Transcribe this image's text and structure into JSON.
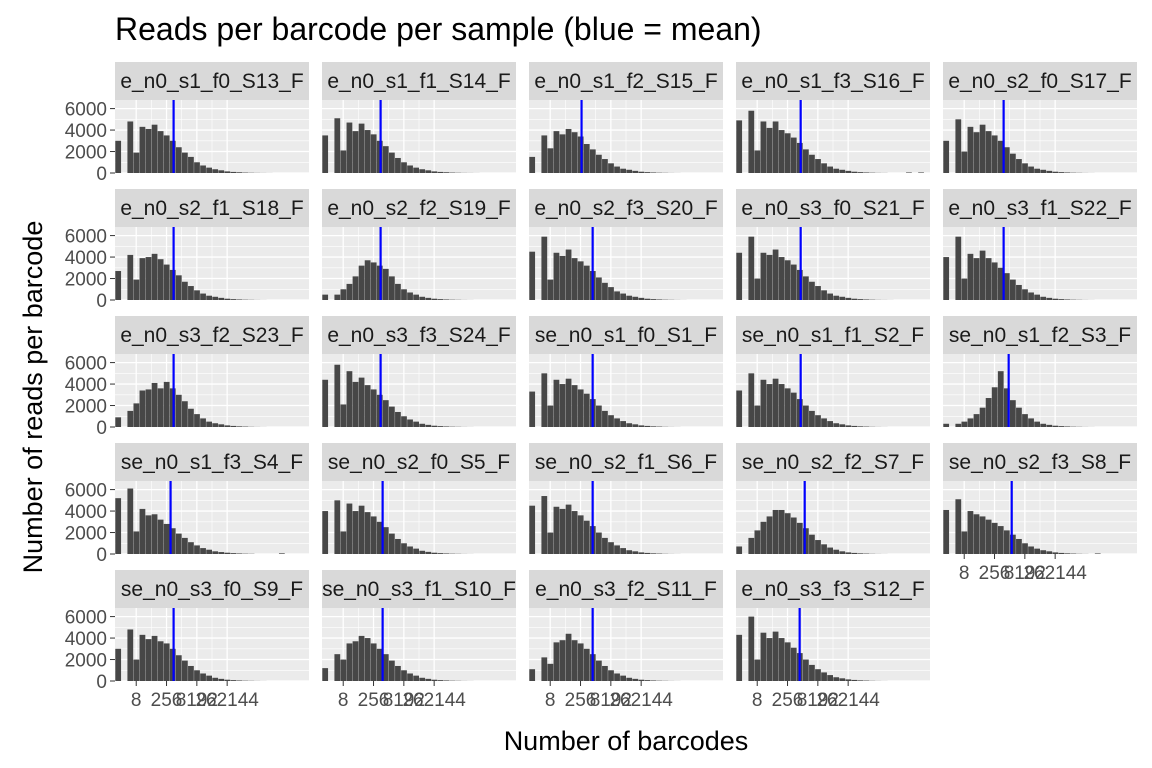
{
  "chart_data": {
    "type": "bar",
    "title": "Reads per barcode per sample (blue = mean)",
    "xlabel": "Number of barcodes",
    "ylabel": "Number of reads per barcode",
    "x_scale": "log2",
    "x_tick_labels": [
      "8",
      "256",
      "8192",
      "262144"
    ],
    "y_tick_labels": [
      "0",
      "2000",
      "4000",
      "6000"
    ],
    "ylim": [
      0,
      6800
    ],
    "grid": true,
    "colors": {
      "bar": "#474747",
      "mean": "#0000ff",
      "panel": "#ebebeb",
      "strip": "#d9d9d9",
      "grid": "#ffffff"
    },
    "panels": [
      {
        "label": "e_n0_s1_f0_S13_F",
        "mean": 5.8,
        "values": [
          3000,
          0,
          4800,
          1900,
          4300,
          4100,
          4500,
          3900,
          3500,
          3000,
          2400,
          1900,
          1500,
          1000,
          700,
          500,
          350,
          250,
          150,
          100,
          70,
          40,
          25,
          15,
          10,
          5,
          0,
          0,
          0,
          0,
          0,
          0
        ]
      },
      {
        "label": "e_n0_s1_f1_S14_F",
        "mean": 5.8,
        "values": [
          3500,
          0,
          5100,
          2100,
          4700,
          3900,
          4600,
          4000,
          3600,
          3000,
          2500,
          1900,
          1400,
          1000,
          700,
          500,
          350,
          250,
          150,
          100,
          70,
          40,
          25,
          15,
          10,
          5,
          0,
          0,
          0,
          0,
          0,
          0
        ]
      },
      {
        "label": "e_n0_s1_f2_S15_F",
        "mean": 5.2,
        "values": [
          1500,
          0,
          3500,
          2300,
          3900,
          3600,
          4100,
          3800,
          3400,
          2700,
          2200,
          1700,
          1300,
          900,
          600,
          400,
          300,
          200,
          120,
          80,
          50,
          30,
          20,
          10,
          5,
          0,
          0,
          0,
          0,
          0,
          0,
          0
        ]
      },
      {
        "label": "e_n0_s1_f3_S16_F",
        "mean": 6.4,
        "values": [
          4900,
          0,
          5800,
          2100,
          4800,
          4200,
          4800,
          4000,
          3700,
          3300,
          2800,
          2200,
          1700,
          1300,
          900,
          600,
          400,
          300,
          200,
          120,
          80,
          50,
          30,
          15,
          10,
          0,
          0,
          0,
          50,
          0,
          50,
          0
        ]
      },
      {
        "label": "e_n0_s2_f0_S17_F",
        "mean": 6.0,
        "values": [
          3000,
          0,
          5000,
          2000,
          4300,
          3800,
          4500,
          3900,
          3500,
          3000,
          2400,
          1800,
          1300,
          900,
          600,
          400,
          300,
          200,
          120,
          80,
          50,
          30,
          20,
          10,
          5,
          0,
          0,
          0,
          0,
          0,
          0,
          0
        ]
      },
      {
        "label": "e_n0_s2_f1_S18_F",
        "mean": 5.8,
        "values": [
          2700,
          0,
          4200,
          1900,
          3900,
          4000,
          4300,
          3800,
          3300,
          2800,
          2300,
          1700,
          1300,
          900,
          600,
          400,
          300,
          200,
          120,
          80,
          50,
          30,
          20,
          10,
          5,
          0,
          0,
          0,
          0,
          0,
          0,
          0
        ]
      },
      {
        "label": "e_n0_s2_f2_S19_F",
        "mean": 5.8,
        "values": [
          500,
          0,
          500,
          1000,
          1500,
          2200,
          3200,
          3700,
          3500,
          3200,
          2900,
          2200,
          1500,
          1000,
          700,
          500,
          300,
          200,
          120,
          80,
          50,
          30,
          20,
          10,
          5,
          0,
          0,
          0,
          0,
          0,
          0,
          0
        ]
      },
      {
        "label": "e_n0_s2_f3_S20_F",
        "mean": 6.3,
        "values": [
          4500,
          0,
          5900,
          1900,
          4400,
          4100,
          4700,
          3900,
          3600,
          3200,
          2700,
          2100,
          1600,
          1200,
          800,
          600,
          400,
          300,
          200,
          120,
          80,
          50,
          30,
          20,
          10,
          5,
          0,
          0,
          0,
          0,
          0,
          0
        ]
      },
      {
        "label": "e_n0_s3_f0_S21_F",
        "mean": 6.4,
        "values": [
          4400,
          0,
          5900,
          2000,
          4400,
          4200,
          4700,
          4000,
          3700,
          3300,
          2800,
          2200,
          1700,
          1300,
          900,
          600,
          400,
          300,
          200,
          120,
          80,
          50,
          30,
          15,
          10,
          5,
          0,
          0,
          0,
          0,
          0,
          0
        ]
      },
      {
        "label": "e_n0_s3_f1_S22_F",
        "mean": 6.0,
        "values": [
          4000,
          0,
          5900,
          2000,
          4300,
          3900,
          4600,
          3900,
          3500,
          3000,
          2500,
          1900,
          1400,
          1000,
          700,
          500,
          300,
          200,
          120,
          80,
          50,
          30,
          20,
          10,
          5,
          0,
          0,
          0,
          0,
          0,
          0,
          0
        ]
      },
      {
        "label": "e_n0_s3_f2_S23_F",
        "mean": 5.8,
        "values": [
          900,
          0,
          1500,
          2200,
          3400,
          3500,
          4100,
          3600,
          4200,
          3600,
          3000,
          2400,
          1700,
          1200,
          800,
          500,
          350,
          250,
          150,
          100,
          60,
          40,
          20,
          10,
          5,
          0,
          0,
          0,
          0,
          0,
          0,
          0
        ]
      },
      {
        "label": "e_n0_s3_f3_S24_F",
        "mean": 5.8,
        "values": [
          4400,
          0,
          5800,
          2100,
          5200,
          4200,
          4600,
          3900,
          3500,
          3000,
          2500,
          1900,
          1400,
          1000,
          700,
          500,
          300,
          200,
          120,
          80,
          50,
          30,
          20,
          10,
          5,
          0,
          0,
          0,
          0,
          0,
          0,
          0
        ]
      },
      {
        "label": "se_n0_s1_f0_S1_F",
        "mean": 6.3,
        "values": [
          3300,
          0,
          5000,
          2000,
          4400,
          4000,
          4500,
          3900,
          3500,
          3100,
          2600,
          2000,
          1500,
          1100,
          800,
          550,
          350,
          250,
          150,
          100,
          60,
          40,
          20,
          10,
          5,
          0,
          0,
          0,
          0,
          0,
          0,
          0
        ]
      },
      {
        "label": "se_n0_s1_f1_S2_F",
        "mean": 6.4,
        "values": [
          3400,
          0,
          5000,
          2000,
          4400,
          4000,
          4500,
          4000,
          3600,
          3200,
          2600,
          2000,
          1500,
          1100,
          800,
          550,
          350,
          250,
          150,
          100,
          60,
          40,
          20,
          10,
          5,
          0,
          0,
          0,
          0,
          0,
          0,
          0
        ]
      },
      {
        "label": "se_n0_s1_f2_S3_F",
        "mean": 6.5,
        "values": [
          300,
          0,
          300,
          500,
          800,
          1200,
          1800,
          2700,
          3700,
          5200,
          3600,
          2500,
          1800,
          1200,
          800,
          500,
          300,
          200,
          120,
          80,
          50,
          30,
          20,
          10,
          5,
          0,
          0,
          0,
          0,
          0,
          0,
          0
        ]
      },
      {
        "label": "se_n0_s1_f3_S4_F",
        "mean": 5.5,
        "values": [
          5200,
          0,
          6100,
          2100,
          4200,
          3600,
          3700,
          3200,
          2800,
          2400,
          1900,
          1500,
          1100,
          800,
          550,
          400,
          250,
          180,
          120,
          80,
          50,
          30,
          20,
          0,
          0,
          0,
          0,
          60,
          0,
          0,
          0,
          0
        ]
      },
      {
        "label": "se_n0_s2_f0_S5_F",
        "mean": 6.0,
        "values": [
          4000,
          0,
          5000,
          2100,
          4700,
          4000,
          4500,
          3900,
          3500,
          3000,
          2500,
          1900,
          1400,
          1000,
          700,
          500,
          300,
          200,
          120,
          80,
          50,
          30,
          20,
          10,
          5,
          0,
          0,
          0,
          0,
          0,
          0,
          0
        ]
      },
      {
        "label": "se_n0_s2_f1_S6_F",
        "mean": 6.3,
        "values": [
          4500,
          0,
          5400,
          2000,
          4400,
          4200,
          4600,
          4000,
          3600,
          3100,
          2600,
          2000,
          1500,
          1100,
          800,
          550,
          350,
          250,
          150,
          100,
          60,
          40,
          20,
          10,
          5,
          0,
          0,
          0,
          0,
          0,
          0,
          0
        ]
      },
      {
        "label": "se_n0_s2_f2_S7_F",
        "mean": 6.8,
        "values": [
          700,
          0,
          1500,
          2200,
          3000,
          3500,
          4100,
          4100,
          3800,
          3400,
          2900,
          2400,
          1800,
          1300,
          900,
          600,
          400,
          250,
          150,
          100,
          60,
          40,
          20,
          10,
          5,
          0,
          0,
          0,
          0,
          0,
          0,
          0
        ]
      },
      {
        "label": "se_n0_s2_f3_S8_F",
        "mean": 6.8,
        "values": [
          4100,
          0,
          5100,
          2100,
          4000,
          3700,
          3500,
          3200,
          2900,
          2600,
          2200,
          1800,
          1400,
          1000,
          700,
          500,
          350,
          250,
          150,
          100,
          60,
          40,
          20,
          10,
          0,
          50,
          0,
          0,
          0,
          0,
          0,
          0
        ]
      },
      {
        "label": "se_n0_s3_f0_S9_F",
        "mean": 5.8,
        "values": [
          3000,
          0,
          4800,
          2000,
          4300,
          3900,
          4200,
          3700,
          3500,
          3000,
          2400,
          1900,
          1400,
          1000,
          700,
          500,
          300,
          200,
          120,
          80,
          50,
          30,
          20,
          10,
          5,
          0,
          0,
          0,
          0,
          0,
          0,
          0
        ]
      },
      {
        "label": "se_n0_s3_f1_S10_F",
        "mean": 6.0,
        "values": [
          1200,
          0,
          2500,
          2000,
          3500,
          3700,
          4200,
          4000,
          3500,
          3000,
          2500,
          1900,
          1400,
          1000,
          700,
          500,
          300,
          200,
          120,
          80,
          50,
          30,
          20,
          10,
          5,
          0,
          0,
          0,
          0,
          0,
          0,
          0
        ]
      },
      {
        "label": "e_n0_s3_f2_S11_F",
        "mean": 6.3,
        "values": [
          1100,
          0,
          2200,
          1600,
          3600,
          3800,
          4400,
          3800,
          3500,
          3000,
          2500,
          1900,
          1400,
          1000,
          700,
          500,
          300,
          200,
          120,
          80,
          50,
          30,
          20,
          10,
          5,
          0,
          0,
          0,
          0,
          0,
          0,
          0
        ]
      },
      {
        "label": "e_n0_s3_f3_S12_F",
        "mean": 6.3,
        "values": [
          4300,
          0,
          6000,
          2000,
          4500,
          4000,
          4600,
          4000,
          3600,
          3100,
          2600,
          2000,
          1500,
          1100,
          800,
          550,
          350,
          250,
          150,
          100,
          60,
          40,
          20,
          10,
          5,
          0,
          0,
          0,
          0,
          0,
          0,
          0
        ]
      }
    ]
  }
}
